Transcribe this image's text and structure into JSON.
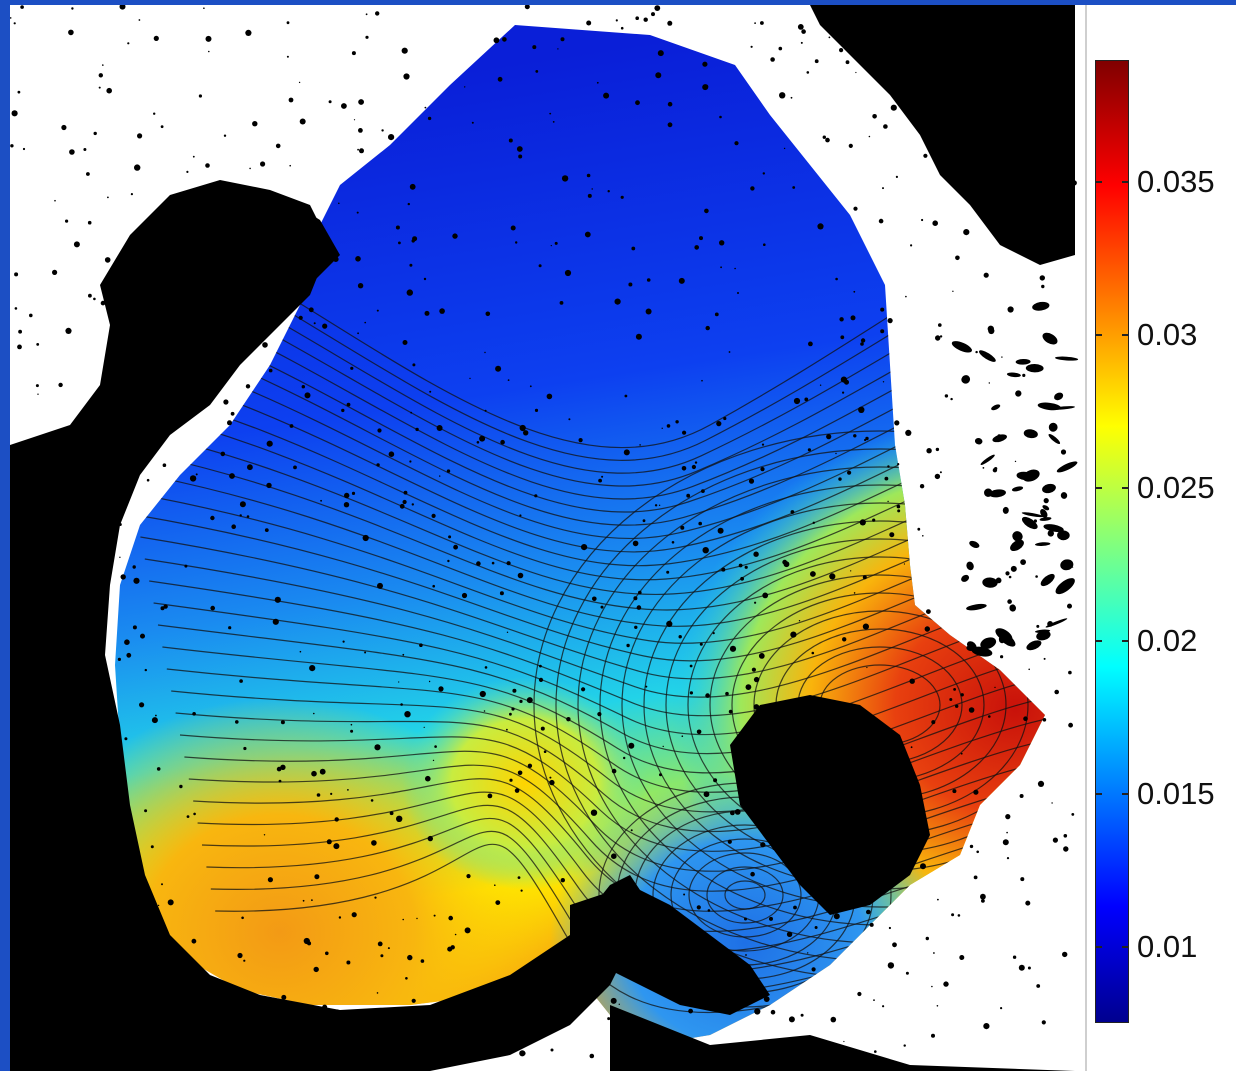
{
  "colorbar": {
    "ticks": [
      {
        "value": 0.035,
        "label": "0.035"
      },
      {
        "value": 0.03,
        "label": "0.03"
      },
      {
        "value": 0.025,
        "label": "0.025"
      },
      {
        "value": 0.02,
        "label": "0.02"
      },
      {
        "value": 0.015,
        "label": "0.015"
      },
      {
        "value": 0.01,
        "label": "0.01"
      }
    ],
    "min": 0.0075,
    "max": 0.039,
    "colormap": "jet",
    "colors": [
      "#00008f",
      "#0000ff",
      "#00ffff",
      "#ffff00",
      "#ff0000",
      "#800000"
    ]
  },
  "background_color": "#1c4fc4",
  "land_color": "#000000",
  "map_background_color": "#ffffff"
}
